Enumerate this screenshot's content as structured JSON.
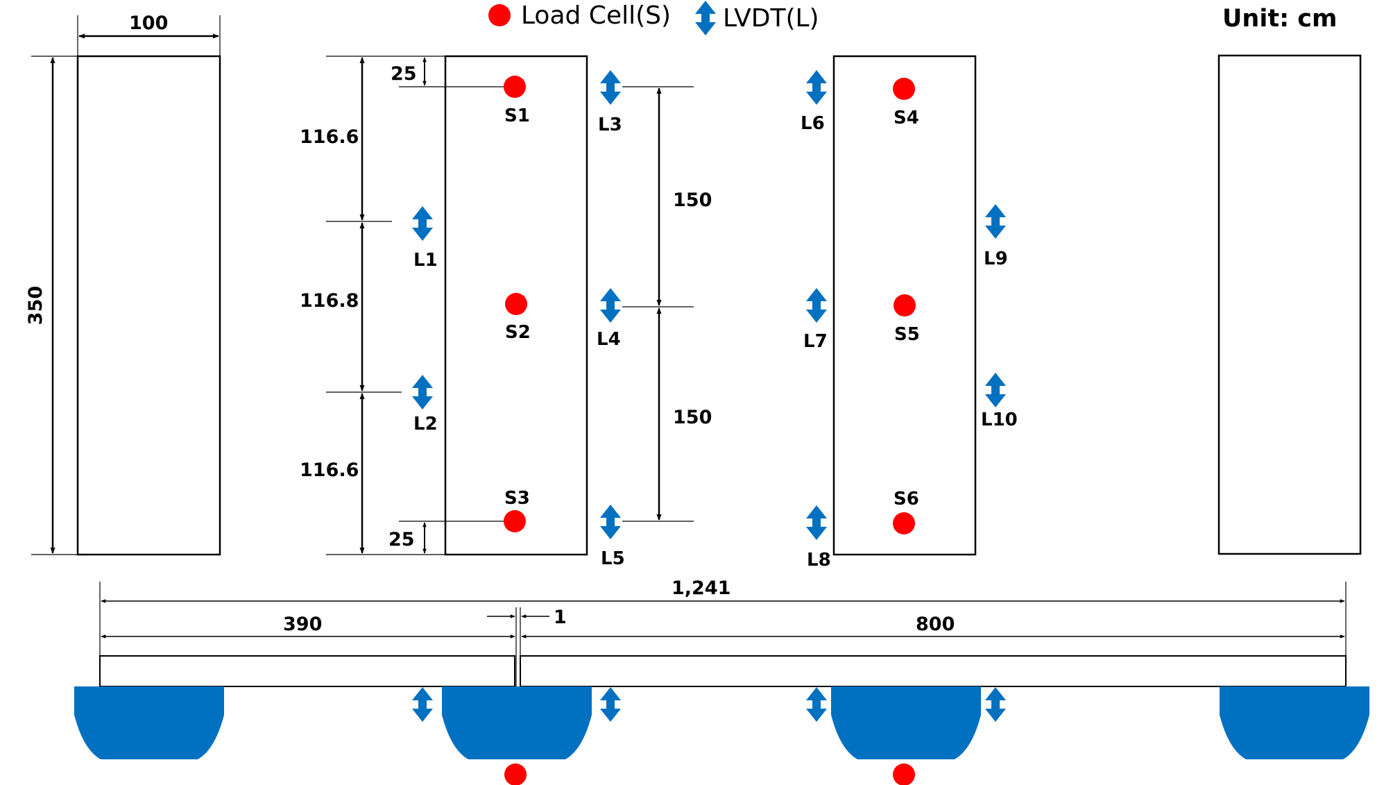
{
  "legend": {
    "load_cell_label": "Load Cell(S)",
    "lvdt_label": "LVDT(L)",
    "unit_label": "Unit: cm"
  },
  "colors": {
    "load_cell": "#ff0000",
    "lvdt": "#0070c0",
    "support": "#0070c0",
    "line": "#000000"
  },
  "dimensions": {
    "slab_width": "100",
    "slab_length": "350",
    "edge_offset_top": "25",
    "edge_offset_bottom": "25",
    "seg_top": "116.6",
    "seg_mid": "116.8",
    "seg_bottom": "116.6",
    "lvdt_spacing_1": "150",
    "lvdt_spacing_2": "150",
    "total_span": "1,241",
    "left_span": "390",
    "gap": "1",
    "right_span": "800"
  },
  "load_cells": [
    "S1",
    "S2",
    "S3",
    "S4",
    "S5",
    "S6"
  ],
  "lvdts": [
    "L1",
    "L2",
    "L3",
    "L4",
    "L5",
    "L6",
    "L7",
    "L8",
    "L9",
    "L10"
  ],
  "icons": {
    "load_cell": "red-circle-icon",
    "lvdt": "double-arrow-icon",
    "support": "semicircle-support-icon"
  }
}
